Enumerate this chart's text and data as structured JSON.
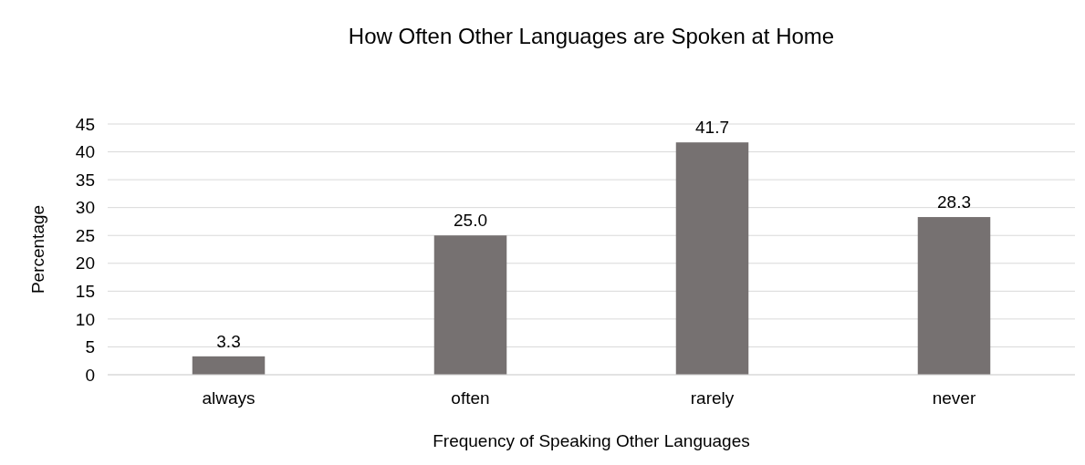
{
  "chart_data": {
    "type": "bar",
    "title": "How Often Other Languages are Spoken at Home",
    "xlabel": "Frequency of Speaking Other Languages",
    "ylabel": "Percentage",
    "categories": [
      "always",
      "often",
      "rarely",
      "never"
    ],
    "values": [
      3.3,
      25.0,
      41.7,
      28.3
    ],
    "value_labels": [
      "3.3",
      "25.0",
      "41.7",
      "28.3"
    ],
    "color": "#767171",
    "ylim": [
      0,
      45
    ],
    "yticks": [
      0,
      5,
      10,
      15,
      20,
      25,
      30,
      35,
      40,
      45
    ],
    "grid": "y"
  }
}
